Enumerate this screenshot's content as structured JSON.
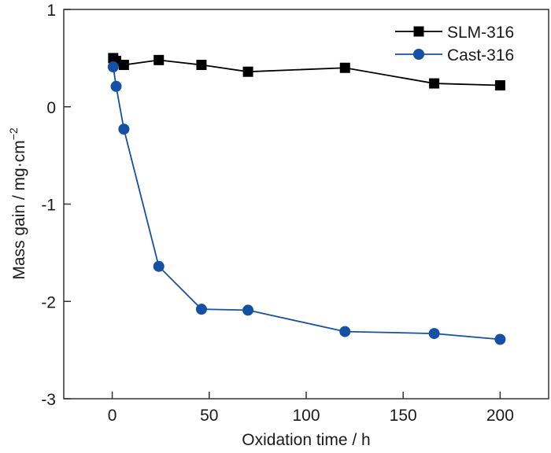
{
  "chart_data": {
    "type": "line",
    "title": "",
    "xlabel": "Oxidation time / h",
    "ylabel_main": "Mass gain / mg·cm",
    "ylabel_sup": "−2",
    "xlim": [
      -25,
      225
    ],
    "ylim": [
      -3,
      1
    ],
    "xticks": [
      0,
      50,
      100,
      150,
      200
    ],
    "xtick_labels": [
      "0",
      "50",
      "100",
      "150",
      "200"
    ],
    "yticks": [
      -3,
      -2,
      -1,
      0,
      1
    ],
    "ytick_labels": [
      "-3",
      "-2",
      "-1",
      "0",
      "1"
    ],
    "grid": false,
    "legend_position": "top-right",
    "series": [
      {
        "name": "SLM-316",
        "marker": "square",
        "color": "#000000",
        "x": [
          0.5,
          2,
          6,
          24,
          46,
          70,
          120,
          166,
          200
        ],
        "y": [
          0.5,
          0.47,
          0.43,
          0.48,
          0.43,
          0.36,
          0.4,
          0.24,
          0.22
        ]
      },
      {
        "name": "Cast-316",
        "marker": "circle",
        "color": "#1450a3",
        "x": [
          0.5,
          2,
          6,
          24,
          46,
          70,
          120,
          166,
          200
        ],
        "y": [
          0.41,
          0.21,
          -0.23,
          -1.64,
          -2.08,
          -2.09,
          -2.31,
          -2.33,
          -2.39
        ]
      }
    ]
  }
}
